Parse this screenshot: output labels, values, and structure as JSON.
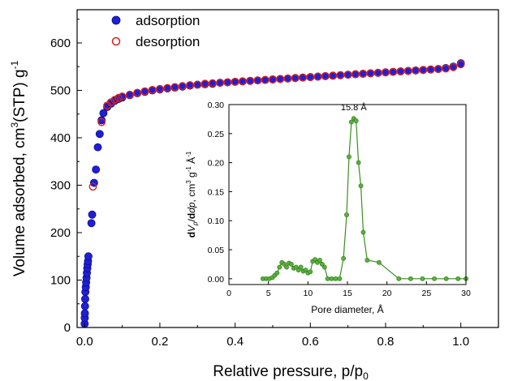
{
  "chart_data": [
    {
      "type": "scatter",
      "xlabel": "Relative pressure, p/p",
      "xlabel_sub": "0",
      "ylabel": "Volume adsorbed, cm",
      "ylabel_sup1": "3",
      "ylabel_mid": "(STP) g",
      "ylabel_sup2": "-1",
      "xlim": [
        -0.02,
        1.1
      ],
      "ylim": [
        0,
        670
      ],
      "x_ticks": [
        0.0,
        0.2,
        0.4,
        0.6,
        0.8,
        1.0
      ],
      "x_tick_labels": [
        "0.0",
        "0.2",
        "0.4",
        "0.6",
        "0.8",
        "1.0"
      ],
      "y_ticks": [
        0,
        100,
        200,
        300,
        400,
        500,
        600
      ],
      "y_tick_labels": [
        "0",
        "100",
        "200",
        "300",
        "400",
        "500",
        "600"
      ],
      "grid": false,
      "legend_position": "top-left",
      "series": [
        {
          "name": "adsorption",
          "color": "#1f1fd6",
          "marker": "filled-circle",
          "x": [
            0.0,
            0.0003,
            0.0006,
            0.001,
            0.0015,
            0.002,
            0.003,
            0.004,
            0.005,
            0.006,
            0.007,
            0.008,
            0.009,
            0.01,
            0.018,
            0.02,
            0.025,
            0.03,
            0.035,
            0.04,
            0.045,
            0.05,
            0.06,
            0.07,
            0.08,
            0.09,
            0.1,
            0.12,
            0.14,
            0.16,
            0.18,
            0.2,
            0.22,
            0.24,
            0.26,
            0.28,
            0.3,
            0.32,
            0.34,
            0.36,
            0.38,
            0.4,
            0.42,
            0.44,
            0.46,
            0.48,
            0.5,
            0.52,
            0.54,
            0.56,
            0.58,
            0.6,
            0.62,
            0.64,
            0.66,
            0.68,
            0.7,
            0.72,
            0.74,
            0.76,
            0.78,
            0.8,
            0.82,
            0.84,
            0.86,
            0.88,
            0.9,
            0.92,
            0.94,
            0.96,
            0.98,
            1.0
          ],
          "y": [
            8,
            20,
            30,
            45,
            60,
            75,
            85,
            95,
            105,
            115,
            125,
            133,
            140,
            150,
            220,
            238,
            305,
            333,
            380,
            408,
            437,
            452,
            465,
            472,
            478,
            482,
            485,
            490,
            494,
            497,
            500,
            502,
            504,
            506,
            508,
            510,
            512,
            513,
            514,
            516,
            517,
            518,
            519,
            520,
            521,
            522,
            523,
            524,
            525,
            526,
            527,
            528,
            529,
            530,
            531,
            532,
            533,
            534,
            535,
            536,
            537,
            538,
            539,
            540,
            541,
            542,
            543,
            544,
            545,
            547,
            550,
            557
          ]
        },
        {
          "name": "desorption",
          "color": "#d42020",
          "marker": "open-circle",
          "x": [
            1.0,
            0.98,
            0.96,
            0.94,
            0.92,
            0.9,
            0.88,
            0.86,
            0.84,
            0.82,
            0.8,
            0.78,
            0.76,
            0.74,
            0.72,
            0.7,
            0.68,
            0.66,
            0.64,
            0.62,
            0.6,
            0.58,
            0.56,
            0.54,
            0.52,
            0.5,
            0.48,
            0.46,
            0.44,
            0.42,
            0.4,
            0.38,
            0.36,
            0.34,
            0.32,
            0.3,
            0.28,
            0.26,
            0.24,
            0.22,
            0.2,
            0.18,
            0.16,
            0.14,
            0.12,
            0.1,
            0.09,
            0.08,
            0.07,
            0.06,
            0.045,
            0.022
          ],
          "y": [
            555,
            549,
            546,
            545,
            544,
            543,
            542,
            541,
            540,
            539,
            538,
            537,
            536,
            535,
            534,
            533,
            532,
            531,
            530,
            529,
            528,
            527,
            526,
            525,
            524,
            523,
            522,
            521,
            520,
            519,
            518,
            517,
            516,
            515,
            514,
            512,
            511,
            509,
            507,
            505,
            503,
            501,
            498,
            495,
            491,
            487,
            484,
            480,
            475,
            468,
            433,
            297
          ]
        }
      ]
    },
    {
      "type": "line",
      "inset": true,
      "xlabel": "Pore diameter, Å",
      "ylabel_parts": [
        "d",
        "V",
        "p",
        "/",
        "d",
        "dp",
        ", cm",
        "3",
        " g",
        "-1",
        " Å",
        "-1"
      ],
      "xlim": [
        0,
        30
      ],
      "ylim": [
        -0.01,
        0.3
      ],
      "x_ticks": [
        0,
        5,
        10,
        15,
        20,
        25,
        30
      ],
      "x_tick_labels": [
        "0",
        "5",
        "10",
        "15",
        "20",
        "25",
        "30"
      ],
      "y_ticks": [
        0.0,
        0.05,
        0.1,
        0.15,
        0.2,
        0.25,
        0.3
      ],
      "y_tick_labels": [
        "0.00",
        "0.05",
        "0.10",
        "0.15",
        "0.20",
        "0.25",
        "0.30"
      ],
      "grid": false,
      "annotation": {
        "text": "15.8 Å",
        "x": 15.8,
        "y": 0.276
      },
      "series": [
        {
          "color": "#3a8f1f",
          "marker": "filled-circle",
          "x": [
            4.3,
            4.7,
            5.1,
            5.5,
            5.8,
            6.1,
            6.4,
            6.7,
            7.0,
            7.3,
            7.6,
            7.9,
            8.2,
            8.5,
            8.8,
            9.1,
            9.4,
            9.7,
            10.0,
            10.3,
            10.6,
            10.9,
            11.2,
            11.5,
            11.8,
            12.1,
            12.5,
            13.0,
            13.5,
            14.0,
            14.5,
            14.9,
            15.2,
            15.5,
            15.8,
            16.1,
            16.4,
            16.7,
            17.0,
            17.5,
            19.0,
            21.5,
            23.0,
            24.5,
            26.0,
            27.5,
            29.0,
            30.0
          ],
          "y": [
            0.0,
            0.0,
            0.0,
            0.002,
            0.006,
            0.01,
            0.02,
            0.028,
            0.025,
            0.02,
            0.027,
            0.025,
            0.018,
            0.02,
            0.015,
            0.02,
            0.013,
            0.015,
            0.01,
            0.012,
            0.03,
            0.033,
            0.028,
            0.032,
            0.025,
            0.02,
            0.0,
            0.0,
            0.0,
            0.0,
            0.035,
            0.11,
            0.21,
            0.27,
            0.276,
            0.272,
            0.2,
            0.16,
            0.08,
            0.032,
            0.028,
            0.0,
            0.0,
            0.0,
            0.0,
            0.0,
            0.0,
            0.0
          ]
        }
      ]
    }
  ]
}
